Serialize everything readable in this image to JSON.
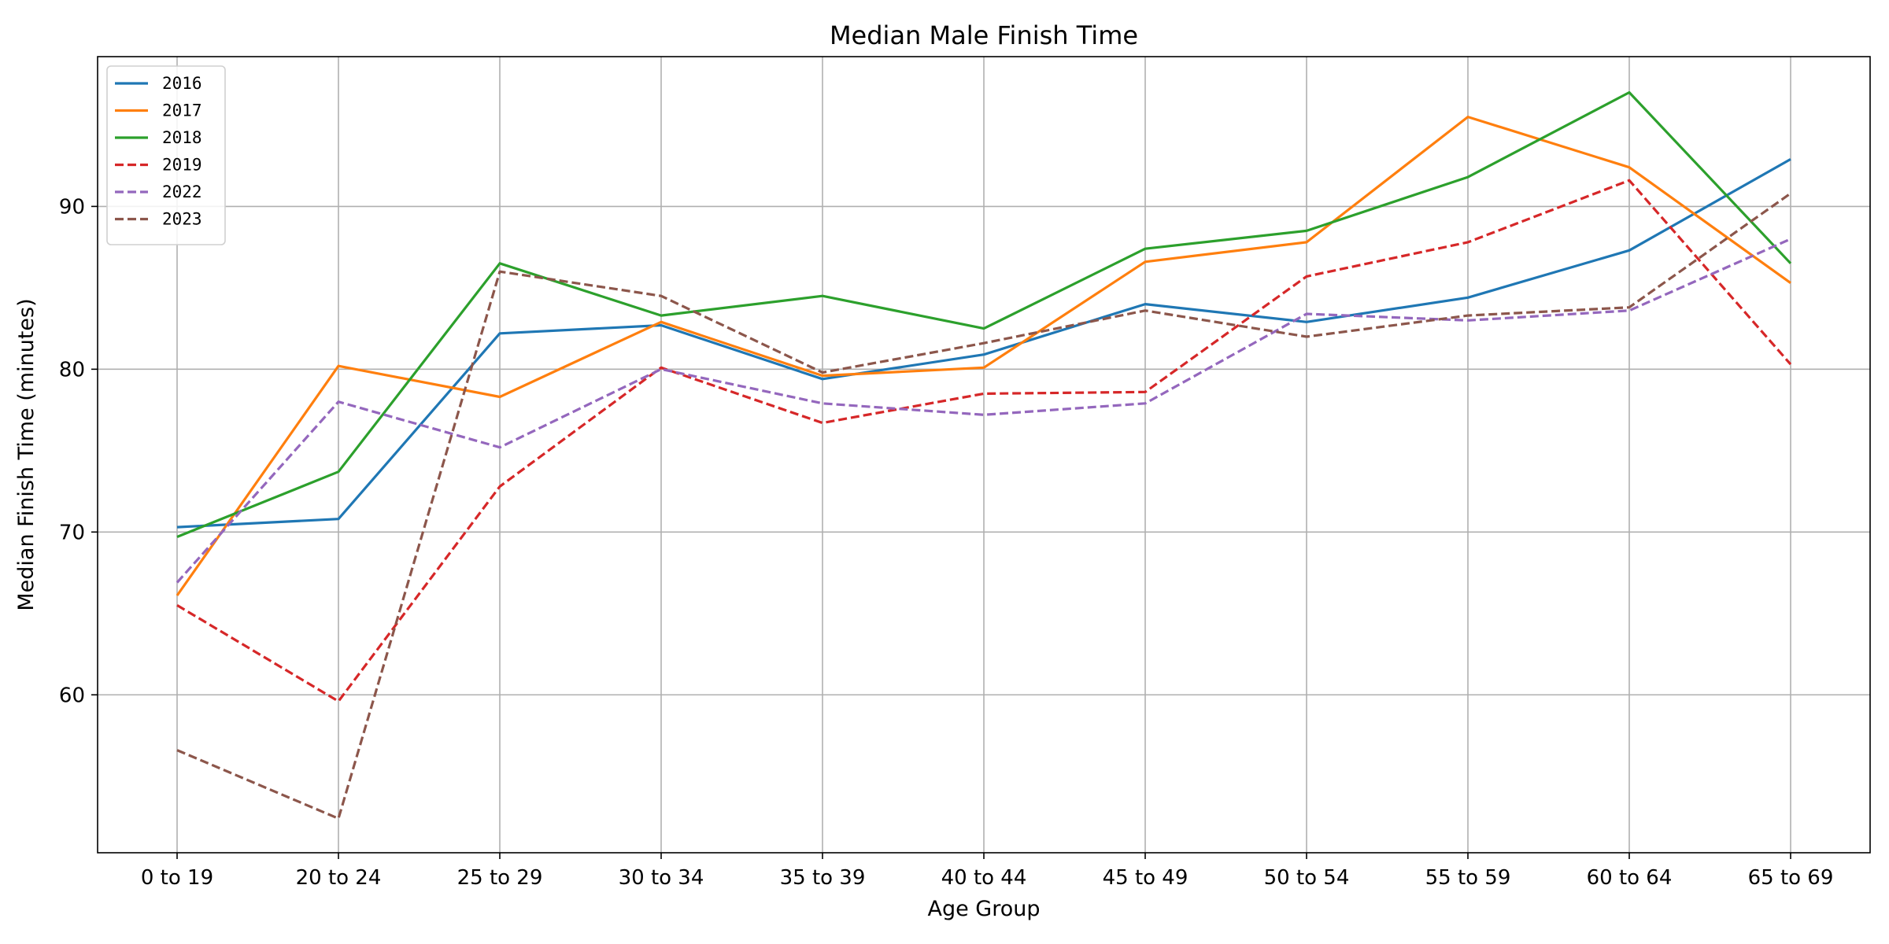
{
  "chart_data": {
    "type": "line",
    "title": "Median Male Finish Time",
    "xlabel": "Age Group",
    "ylabel": "Median Finish Time (minutes)",
    "categories": [
      "0 to 19",
      "20 to 24",
      "25 to 29",
      "30 to 34",
      "35 to 39",
      "40 to 44",
      "45 to 49",
      "50 to 54",
      "55 to 59",
      "60 to 64",
      "65 to 69"
    ],
    "ylim": [
      50.3,
      99.2
    ],
    "yticks": [
      60,
      70,
      80,
      90
    ],
    "grid": true,
    "legend_position": "top-left",
    "series": [
      {
        "name": "2016",
        "color": "#1f77b4",
        "dash": "solid",
        "values": [
          70.3,
          70.8,
          82.2,
          82.7,
          79.4,
          80.9,
          84.0,
          82.9,
          84.4,
          87.3,
          92.9
        ]
      },
      {
        "name": "2017",
        "color": "#ff7f0e",
        "dash": "solid",
        "values": [
          66.1,
          80.2,
          78.3,
          82.9,
          79.6,
          80.1,
          86.6,
          87.8,
          95.5,
          92.4,
          85.3
        ]
      },
      {
        "name": "2018",
        "color": "#2ca02c",
        "dash": "solid",
        "values": [
          69.7,
          73.7,
          86.5,
          83.3,
          84.5,
          82.5,
          87.4,
          88.5,
          91.8,
          97.0,
          86.5
        ]
      },
      {
        "name": "2019",
        "color": "#d62728",
        "dash": "dashed",
        "values": [
          65.5,
          59.6,
          72.8,
          80.1,
          76.7,
          78.5,
          78.6,
          85.7,
          87.8,
          91.6,
          80.3
        ]
      },
      {
        "name": "2022",
        "color": "#9467bd",
        "dash": "dashed",
        "values": [
          66.9,
          78.0,
          75.2,
          80.0,
          77.9,
          77.2,
          77.9,
          83.4,
          83.0,
          83.6,
          88.0
        ]
      },
      {
        "name": "2023",
        "color": "#8c564b",
        "dash": "dashed",
        "values": [
          56.6,
          52.4,
          86.0,
          84.5,
          79.8,
          81.6,
          83.6,
          82.0,
          83.3,
          83.8,
          90.8
        ]
      }
    ]
  }
}
